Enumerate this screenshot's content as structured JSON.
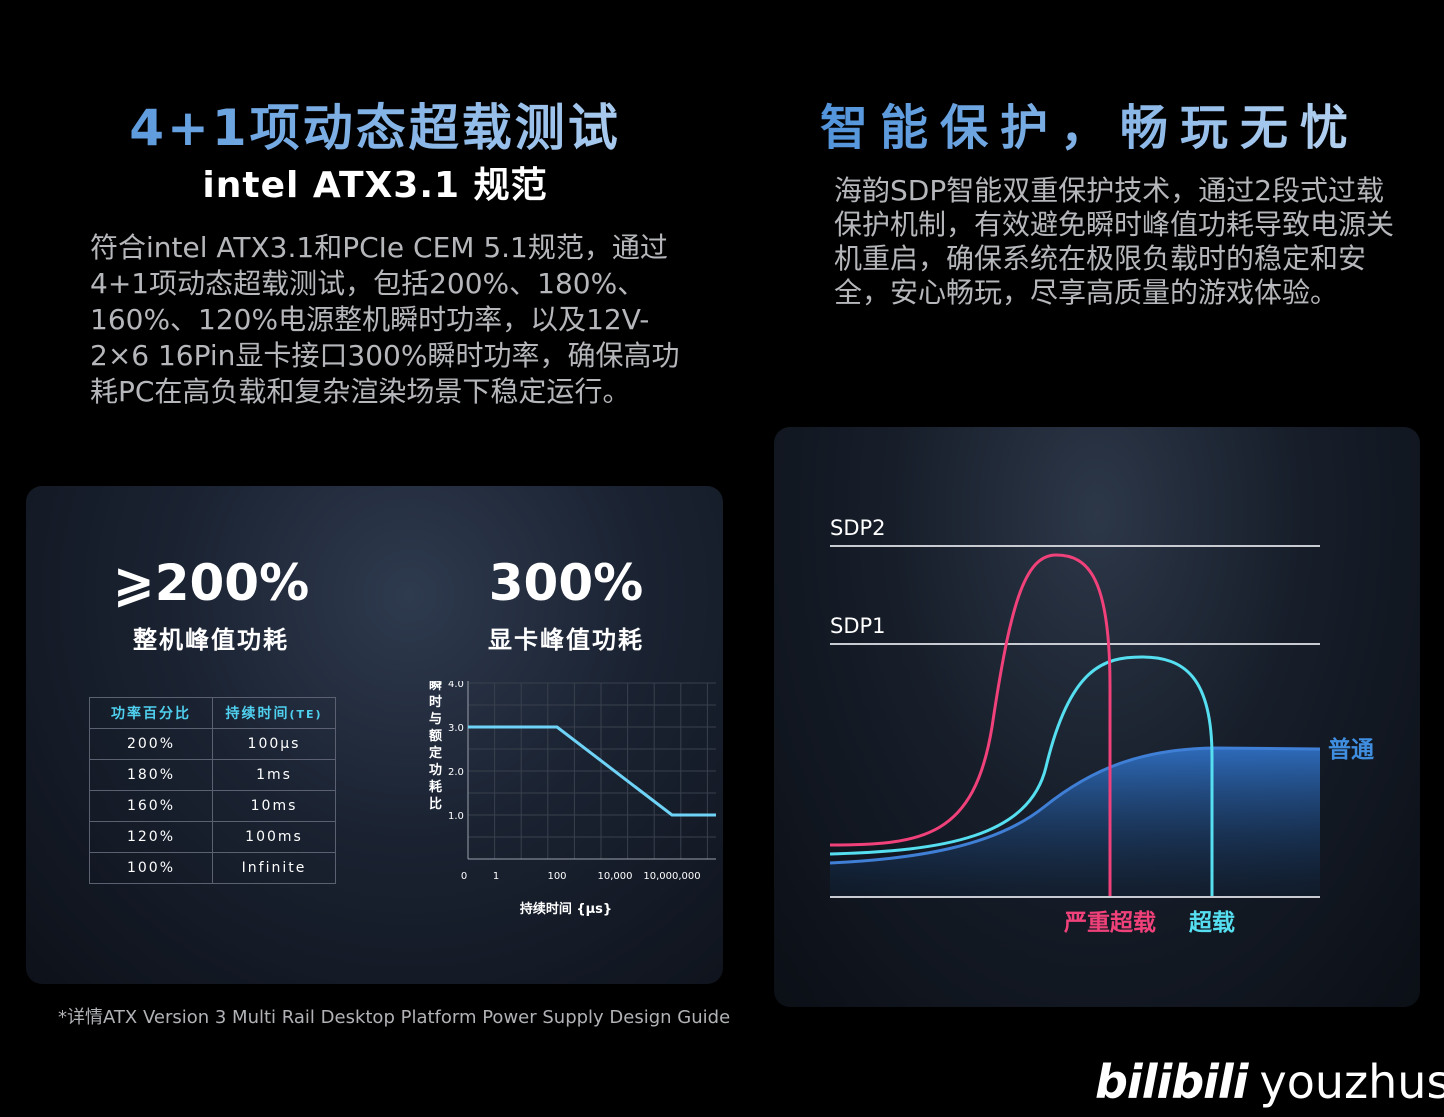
{
  "left": {
    "title": "4+1项动态超载测试",
    "subtitle": "intel ATX3.1 规范",
    "paragraph": "符合intel ATX3.1和PCIe CEM 5.1规范，通过4+1项动态超载测试，包括200%、180%、160%、120%电源整机瞬时功率，以及12V-2×6 16Pin显卡接口300%瞬时功率，确保高功耗PC在高负载和复杂渲染场景下稳定运行。",
    "stat1": {
      "value": "⩾200%",
      "caption": "整机峰值功耗"
    },
    "stat2": {
      "value": "300%",
      "caption": "显卡峰值功耗"
    },
    "table": {
      "headers": [
        "功率百分比",
        "持续时间"
      ],
      "header_suffix": "(TE)",
      "rows": [
        [
          "200%",
          "100µs"
        ],
        [
          "180%",
          "1ms"
        ],
        [
          "160%",
          "10ms"
        ],
        [
          "120%",
          "100ms"
        ],
        [
          "100%",
          "Infinite"
        ]
      ]
    },
    "footnote": "*详情ATX Version 3 Multi Rail Desktop Platform Power Supply Design Guide"
  },
  "right": {
    "title": "智能保护，畅玩无忧",
    "paragraph": "海韵SDP智能双重保护技术，通过2段式过载保护机制，有效避免瞬时峰值功耗导致电源关机重启，确保系统在极限负载时的稳定和安全，安心畅玩，尽享高质量的游戏体验。"
  },
  "chart_data": [
    {
      "type": "line",
      "ylabel": "瞬时与额定功耗比",
      "xlabel": "持续时间 {µs}",
      "yticks": [
        "4.0",
        "3.0",
        "2.0",
        "1.0"
      ],
      "xticks": [
        "0",
        "1",
        "100",
        "10,000",
        "10,000,000"
      ],
      "ylim": [
        0,
        4
      ],
      "series": [
        {
          "x": [
            "0",
            "100",
            "10,000,000",
            "end"
          ],
          "values": [
            3.0,
            3.0,
            1.0,
            1.0
          ]
        }
      ],
      "color": "#6fd3f7"
    },
    {
      "type": "area",
      "levels": [
        "SDP2",
        "SDP1"
      ],
      "series": [
        {
          "name": "普通",
          "color": "#3f7fd6"
        },
        {
          "name": "严重超载",
          "color": "#f0417a"
        },
        {
          "name": "超载",
          "color": "#55dff0"
        }
      ]
    }
  ],
  "brand": {
    "logo": "bilibili",
    "user": "youzhusky"
  }
}
